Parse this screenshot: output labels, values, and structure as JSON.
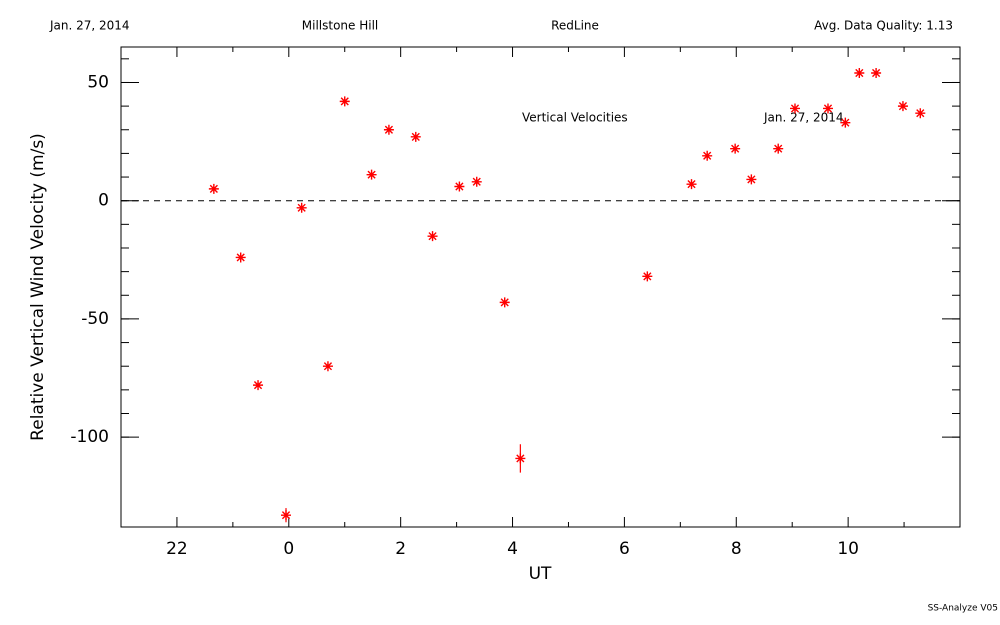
{
  "chart_data": {
    "type": "scatter",
    "header": [
      "Jan. 27, 2014",
      "Millstone Hill",
      "RedLine",
      "Avg. Data Quality: 1.13"
    ],
    "annotations": [
      "Vertical Velocities",
      "Jan. 27, 2014"
    ],
    "footer": "SS-Analyze V05",
    "xlabel": "UT",
    "ylabel": "Relative Vertical Wind Velocity (m/s)",
    "xlim": [
      -3,
      12
    ],
    "ylim": [
      -138,
      65
    ],
    "xticks": [
      {
        "value": -2,
        "label": "22"
      },
      0,
      2,
      4,
      6,
      8,
      10
    ],
    "yticks": [
      -100,
      -50,
      0,
      50
    ],
    "hline": 0,
    "color": "#ff0000",
    "x": [
      -1.34,
      -0.86,
      -0.55,
      -0.05,
      0.23,
      0.7,
      1.0,
      1.48,
      1.79,
      2.27,
      2.57,
      3.05,
      3.36,
      3.86,
      4.14,
      6.41,
      7.2,
      7.48,
      7.98,
      8.27,
      8.75,
      9.05,
      9.64,
      9.95,
      10.2,
      10.5,
      10.98,
      11.29
    ],
    "values": [
      5,
      -24,
      -78,
      -133,
      -3,
      -70,
      42,
      11,
      30,
      27,
      -15,
      6,
      8,
      -43,
      -109,
      -32,
      7,
      19,
      22,
      9,
      22,
      39,
      39,
      33,
      54,
      54,
      40,
      37
    ],
    "errors": [
      1,
      1,
      1,
      3,
      1,
      1,
      1,
      1,
      1,
      1,
      1,
      1,
      1,
      1,
      6,
      1,
      1,
      1,
      1,
      1,
      1,
      1,
      1,
      1,
      1,
      1,
      1,
      1
    ]
  }
}
